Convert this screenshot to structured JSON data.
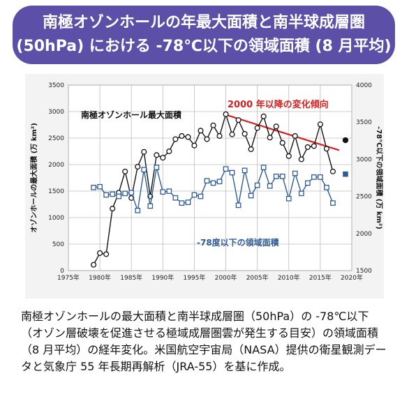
{
  "header": {
    "title_line1": "南極オゾンホールの年最大面積と南半球成層圏",
    "title_line2": "(50hPa) における -78℃以下の領域面積 (8 月平均)"
  },
  "chart_data": {
    "type": "line",
    "x": [
      1979,
      1980,
      1981,
      1982,
      1983,
      1984,
      1985,
      1986,
      1987,
      1988,
      1989,
      1990,
      1991,
      1992,
      1993,
      1994,
      1995,
      1996,
      1997,
      1998,
      1999,
      2000,
      2001,
      2002,
      2003,
      2004,
      2005,
      2006,
      2007,
      2008,
      2009,
      2010,
      2011,
      2012,
      2013,
      2014,
      2015,
      2016,
      2017,
      2018
    ],
    "series": [
      {
        "name": "南極オゾンホール最大面積",
        "axis": "left",
        "color": "#111111",
        "values": [
          110,
          330,
          310,
          1170,
          1470,
          1870,
          1370,
          1960,
          2240,
          1400,
          2180,
          2130,
          2250,
          2480,
          2540,
          2520,
          2360,
          2640,
          2480,
          2740,
          2540,
          2950,
          2570,
          2840,
          2580,
          2290,
          2690,
          2910,
          2510,
          2720,
          2410,
          2160,
          2540,
          2100,
          2330,
          2350,
          2760,
          2300,
          1870,
          null
        ],
        "latest": {
          "x": 2019,
          "value": 2460,
          "marker": "filled"
        }
      },
      {
        "name": "-78度以下の領域面積",
        "axis": "right",
        "color": "#2f5b96",
        "values": [
          2620,
          2630,
          2520,
          2530,
          2500,
          2540,
          2550,
          2310,
          2860,
          2370,
          2890,
          2560,
          2570,
          2480,
          2410,
          2420,
          2520,
          2500,
          2710,
          2680,
          2700,
          2870,
          2820,
          2380,
          2850,
          2510,
          2650,
          2890,
          2640,
          2770,
          2770,
          2470,
          2810,
          2540,
          2680,
          2760,
          2760,
          2620,
          2410,
          null
        ],
        "latest": {
          "x": 2019,
          "value": 2800,
          "marker": "filled"
        }
      }
    ],
    "trend": {
      "label": "2000 年以降の変化傾向",
      "color": "#d62020",
      "x": [
        2000,
        2018
      ],
      "y": [
        2940,
        2270
      ]
    },
    "xlim": [
      1975,
      2020
    ],
    "xticks": [
      1975,
      1980,
      1985,
      1990,
      1995,
      2000,
      2005,
      2010,
      2015,
      2020
    ],
    "ylim_left": [
      0,
      3500
    ],
    "yticks_left": [
      0,
      500,
      1000,
      1500,
      2000,
      2500,
      3000,
      3500
    ],
    "ylim_right": [
      1500,
      4000
    ],
    "yticks_right": [
      1500,
      2000,
      2500,
      3000,
      3500,
      4000
    ],
    "ylabel_left": "オゾンホールの最大面積 (万 km²)",
    "ylabel_right": "-78℃以下の領域面積 (万 km²)",
    "annotations": {
      "ozone_label": "南極オゾンホール最大面積",
      "area_label": "-78度以下の領域面積"
    },
    "grid": true
  },
  "caption": {
    "text": "南極オゾンホールの最大面積と南半球成層圏（50hPa）の -78℃以下（オゾン層破壊を促進させる極域成層圏雲が発生する目安）の領域面積（8 月平均）の経年変化。米国航空宇宙局（NASA）提供の衛星観測データと気象庁 55 年長期再解析（JRA-55）を基に作成。"
  }
}
